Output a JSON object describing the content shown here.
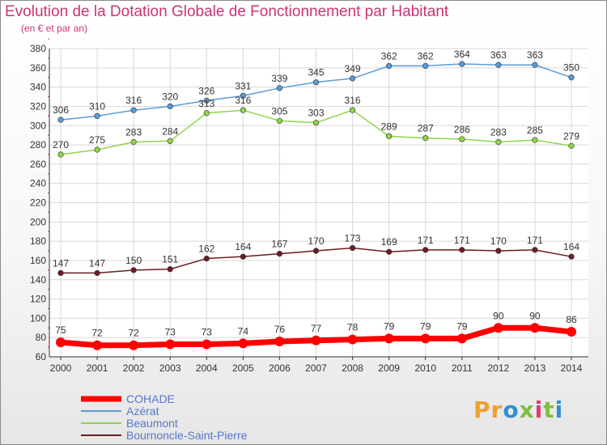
{
  "title": "Evolution de la Dotation Globale de Fonctionnement par Habitant",
  "subtitle": "(en € et par an)",
  "logo": "Proxiti",
  "colors": {
    "accent": "#cc3377",
    "grid": "#d8d8d8",
    "axis": "#333333"
  },
  "chart_data": {
    "type": "line",
    "title": "Evolution de la Dotation Globale de Fonctionnement par Habitant",
    "subtitle": "(en € et par an)",
    "x": [
      2000,
      2001,
      2002,
      2003,
      2004,
      2005,
      2006,
      2007,
      2008,
      2009,
      2010,
      2011,
      2012,
      2013,
      2014
    ],
    "ylim": [
      60,
      380
    ],
    "ytick_step": 20,
    "grid": true,
    "legend_position": "bottom-left",
    "series": [
      {
        "name": "Azérat",
        "color": "#5b9bd5",
        "values": [
          306,
          310,
          316,
          320,
          326,
          331,
          339,
          345,
          349,
          362,
          362,
          364,
          363,
          363,
          350
        ]
      },
      {
        "name": "Beaumont",
        "color": "#8fd44a",
        "values": [
          270,
          275,
          283,
          284,
          313,
          316,
          305,
          303,
          316,
          289,
          287,
          286,
          283,
          285,
          279
        ]
      },
      {
        "name": "Bournoncle-Saint-Pierre",
        "color": "#6b1c23",
        "values": [
          147,
          147,
          150,
          151,
          162,
          164,
          167,
          170,
          173,
          169,
          171,
          171,
          170,
          171,
          164
        ]
      },
      {
        "name": "COHADE",
        "color": "#ff0000",
        "bold": true,
        "values": [
          75,
          72,
          72,
          73,
          73,
          74,
          76,
          77,
          78,
          79,
          79,
          79,
          90,
          90,
          86
        ]
      }
    ],
    "legend_order": [
      "COHADE",
      "Azérat",
      "Beaumont",
      "Bournoncle-Saint-Pierre"
    ]
  }
}
